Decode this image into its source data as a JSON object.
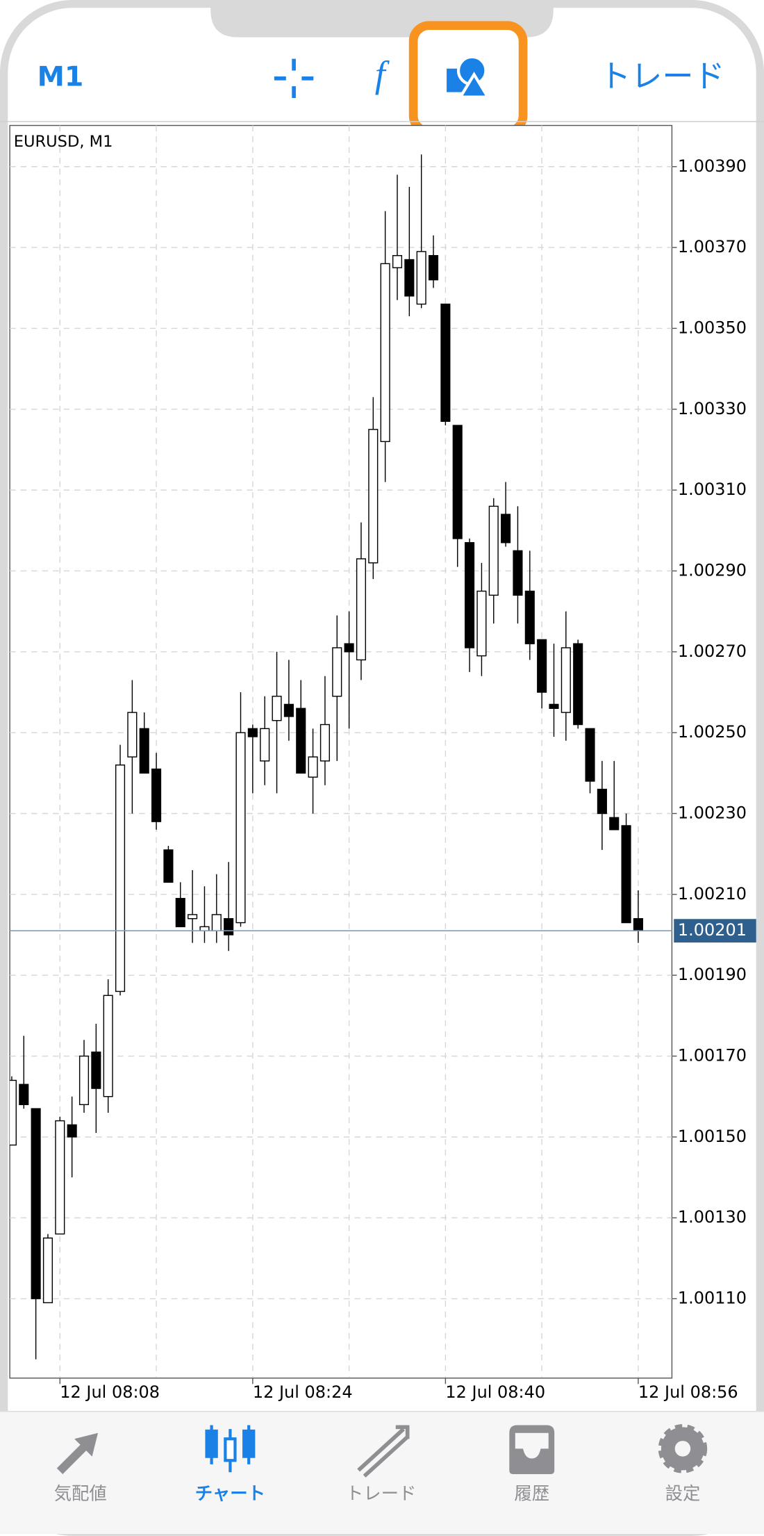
{
  "toolbar": {
    "timeframe": "M1",
    "indicators": "f",
    "trade": "トレード"
  },
  "chart_data": {
    "type": "candlestick",
    "title": "EURUSD, M1",
    "categories": [
      null,
      null,
      null,
      null,
      "12 Jul 08:08",
      null,
      null,
      null,
      null,
      null,
      null,
      null,
      null,
      null,
      null,
      null,
      null,
      null,
      null,
      null,
      "12 Jul 08:24",
      null,
      null,
      null,
      null,
      null,
      null,
      null,
      null,
      null,
      null,
      null,
      null,
      null,
      null,
      null,
      "12 Jul 08:40",
      null,
      null,
      null,
      null,
      null,
      null,
      null,
      null,
      null,
      null,
      null,
      null,
      null,
      null,
      null,
      "12 Jul 08:56"
    ],
    "open": [
      1.00148,
      1.00163,
      1.00157,
      1.00109,
      1.00126,
      1.00153,
      1.00158,
      1.00171,
      1.0016,
      1.00186,
      1.00244,
      1.00251,
      1.00241,
      1.00221,
      1.00209,
      1.00204,
      1.00201,
      1.00201,
      1.00204,
      1.00203,
      1.00251,
      1.00243,
      1.00253,
      1.00257,
      1.00256,
      1.00239,
      1.00243,
      1.00259,
      1.00272,
      1.00268,
      1.00292,
      1.00322,
      1.00365,
      1.00367,
      1.00356,
      1.00368,
      1.00356,
      1.00326,
      1.00297,
      1.00269,
      1.00284,
      1.00304,
      1.00295,
      1.00285,
      1.00273,
      1.00257,
      1.00255,
      1.00272,
      1.00251,
      1.00236,
      1.00229,
      1.00227,
      1.00204
    ],
    "high": [
      1.00165,
      1.00175,
      1.00157,
      1.00126,
      1.00155,
      1.0016,
      1.00174,
      1.00178,
      1.00189,
      1.00247,
      1.00263,
      1.00255,
      1.00245,
      1.00222,
      1.00213,
      1.00216,
      1.00212,
      1.00215,
      1.00218,
      1.0026,
      1.00252,
      1.00259,
      1.0027,
      1.00268,
      1.00263,
      1.00251,
      1.00264,
      1.00279,
      1.0028,
      1.00302,
      1.00333,
      1.00379,
      1.00388,
      1.00385,
      1.00393,
      1.00373,
      1.00356,
      1.00326,
      1.00298,
      1.00292,
      1.00308,
      1.00312,
      1.00306,
      1.00295,
      1.00273,
      1.00272,
      1.0028,
      1.00273,
      1.00251,
      1.00243,
      1.00243,
      1.0023,
      1.00211
    ],
    "low": [
      1.00148,
      1.00157,
      1.00095,
      1.00109,
      1.00126,
      1.0014,
      1.00156,
      1.00151,
      1.00156,
      1.00185,
      1.0023,
      1.0024,
      1.00226,
      1.00213,
      1.00202,
      1.00198,
      1.00198,
      1.00198,
      1.00196,
      1.00202,
      1.00235,
      1.00237,
      1.00235,
      1.00248,
      1.0024,
      1.0023,
      1.00237,
      1.00243,
      1.00251,
      1.00263,
      1.00288,
      1.00312,
      1.00357,
      1.00353,
      1.00355,
      1.0036,
      1.00326,
      1.00291,
      1.00265,
      1.00264,
      1.00277,
      1.00296,
      1.00277,
      1.00268,
      1.00256,
      1.00249,
      1.00248,
      1.00251,
      1.00235,
      1.00221,
      1.00226,
      1.00203,
      1.00198
    ],
    "close": [
      1.00164,
      1.00158,
      1.0011,
      1.00125,
      1.00154,
      1.0015,
      1.0017,
      1.00162,
      1.00185,
      1.00242,
      1.00255,
      1.0024,
      1.00228,
      1.00213,
      1.00202,
      1.00205,
      1.00202,
      1.00205,
      1.002,
      1.0025,
      1.00249,
      1.00251,
      1.00259,
      1.00254,
      1.0024,
      1.00244,
      1.00252,
      1.00271,
      1.0027,
      1.00293,
      1.00325,
      1.00366,
      1.00368,
      1.00358,
      1.00369,
      1.00362,
      1.00327,
      1.00298,
      1.00271,
      1.00285,
      1.00306,
      1.00297,
      1.00284,
      1.00272,
      1.0026,
      1.00256,
      1.00271,
      1.00252,
      1.00238,
      1.0023,
      1.00226,
      1.00203,
      1.00201
    ],
    "up_color": "#ffffff",
    "down_color": "#000000",
    "ylim": [
      1.000906,
      1.003997
    ],
    "yticks": [
      {
        "value": 1.0011,
        "label": "1.00110"
      },
      {
        "value": 1.0013,
        "label": "1.00130"
      },
      {
        "value": 1.0015,
        "label": "1.00150"
      },
      {
        "value": 1.0017,
        "label": "1.00170"
      },
      {
        "value": 1.0019,
        "label": "1.00190"
      },
      {
        "value": 1.0021,
        "label": "1.00210"
      },
      {
        "value": 1.0023,
        "label": "1.00230"
      },
      {
        "value": 1.0025,
        "label": "1.00250"
      },
      {
        "value": 1.0027,
        "label": "1.00270"
      },
      {
        "value": 1.0029,
        "label": "1.00290"
      },
      {
        "value": 1.0031,
        "label": "1.00310"
      },
      {
        "value": 1.0033,
        "label": "1.00330"
      },
      {
        "value": 1.0035,
        "label": "1.00350"
      },
      {
        "value": 1.0037,
        "label": "1.00370"
      },
      {
        "value": 1.0039,
        "label": "1.00390"
      }
    ],
    "last_price": {
      "value": 1.00201,
      "label": "1.00201"
    },
    "grid": true
  },
  "tabs": [
    "気配値",
    "チャート",
    "トレード",
    "履歴",
    "設定"
  ]
}
